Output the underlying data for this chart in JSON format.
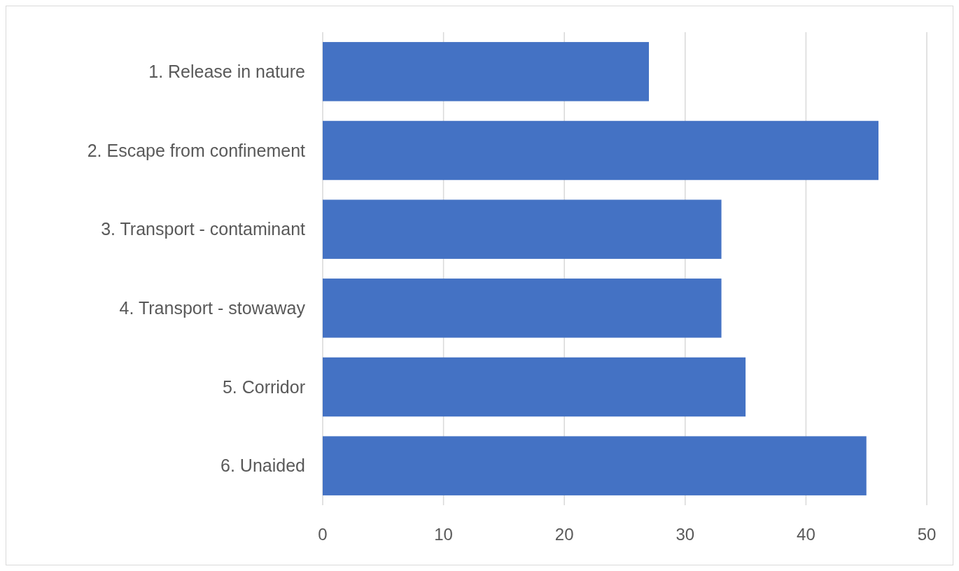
{
  "chart_data": {
    "type": "bar",
    "orientation": "horizontal",
    "categories": [
      "1. Release in nature",
      "2. Escape from confinement",
      "3. Transport - contaminant",
      "4. Transport - stowaway",
      "5. Corridor",
      "6. Unaided"
    ],
    "values": [
      27,
      46,
      33,
      33,
      35,
      45
    ],
    "color": "#4472c4",
    "xlim": [
      0,
      50
    ],
    "xticks": [
      0,
      10,
      20,
      30,
      40,
      50
    ],
    "grid": "x"
  }
}
